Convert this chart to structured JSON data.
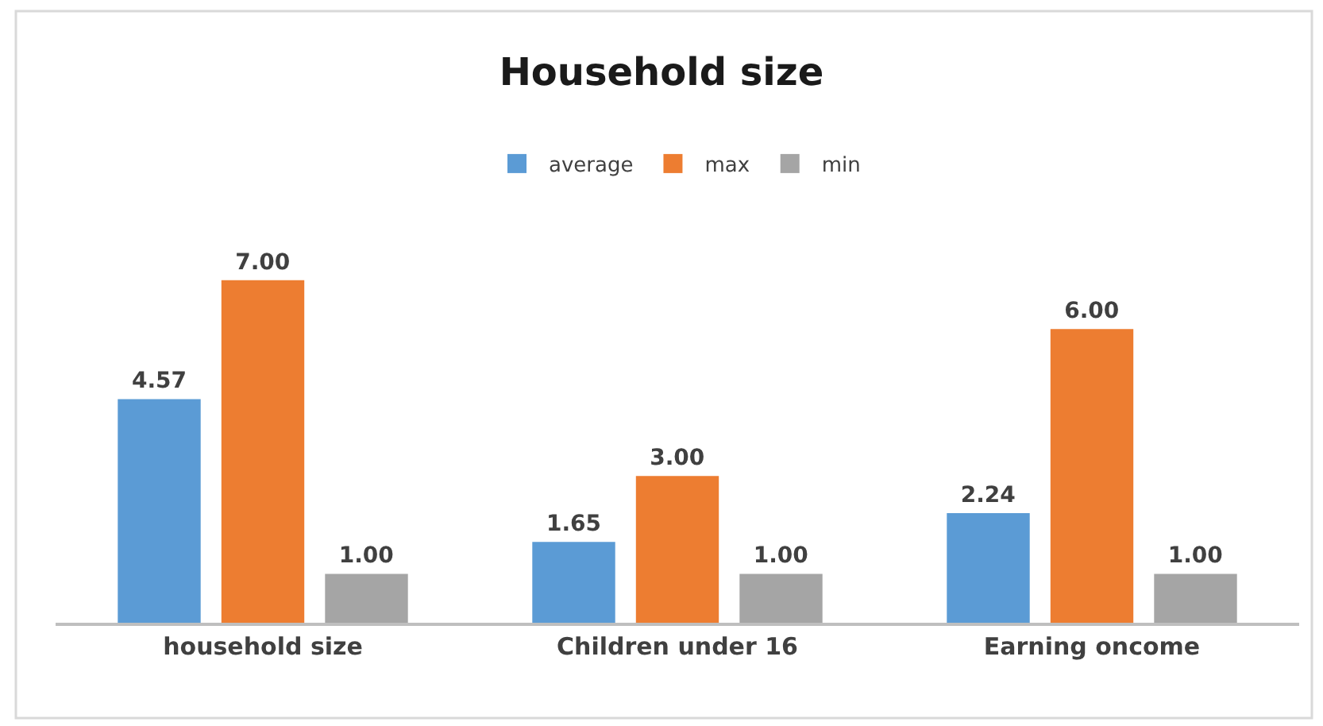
{
  "chart_data": {
    "type": "bar",
    "title": "Household size",
    "categories": [
      "household size",
      "Children under 16",
      "Earning oncome"
    ],
    "series": [
      {
        "name": "average",
        "color": "#5b9bd5",
        "values": [
          4.57,
          1.65,
          2.24
        ],
        "value_labels": [
          "4.57",
          "1.65",
          "2.24"
        ]
      },
      {
        "name": "max",
        "color": "#ed7d31",
        "values": [
          7.0,
          3.0,
          6.0
        ],
        "value_labels": [
          "7.00",
          "3.00",
          "6.00"
        ]
      },
      {
        "name": "min",
        "color": "#a5a5a5",
        "values": [
          1.0,
          1.0,
          1.0
        ],
        "value_labels": [
          "1.00",
          "1.00",
          "1.00"
        ]
      }
    ],
    "tick_labels": "x",
    "grid": false,
    "legend": "top"
  }
}
